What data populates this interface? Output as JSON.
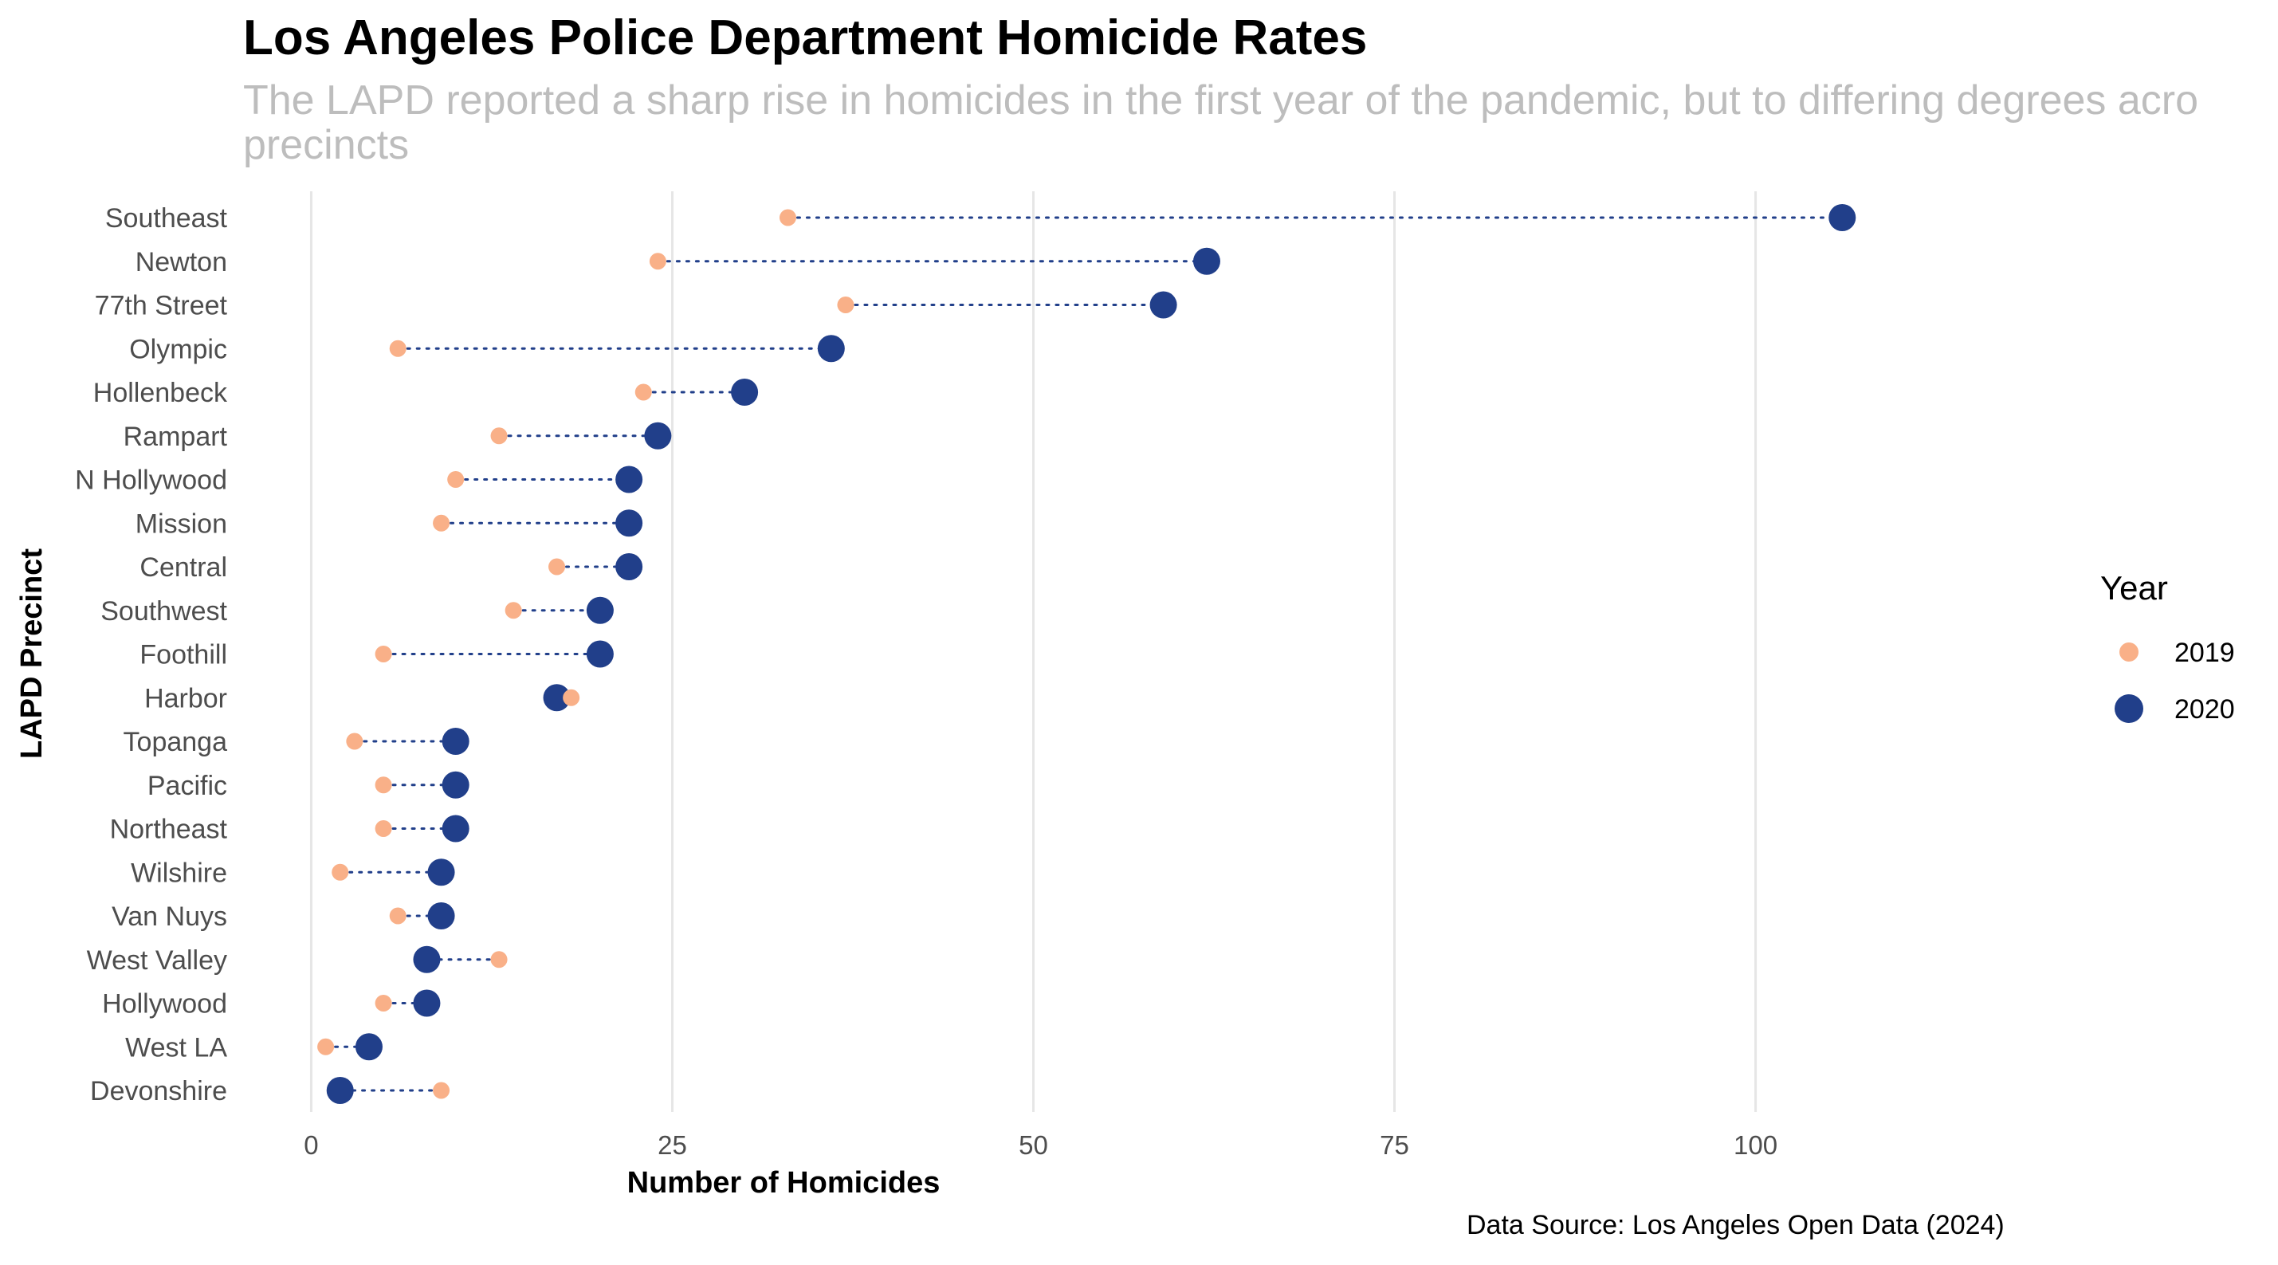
{
  "chart_data": {
    "type": "dumbbell",
    "title": "Los Angeles Police Department Homicide Rates",
    "subtitle_lines": [
      "The LAPD reported a sharp rise in homicides in the first year of the pandemic, but to differing degrees acro",
      "precincts"
    ],
    "xlabel": "Number of Homicides",
    "ylabel": "LAPD Precinct",
    "caption": "Data Source: Los Angeles Open Data (2024)",
    "xlim": [
      -4,
      112
    ],
    "x_ticks": [
      0,
      25,
      50,
      75,
      100
    ],
    "grid": "vertical major",
    "legend": {
      "title": "Year",
      "position": "right"
    },
    "categories": [
      "Southeast",
      "Newton",
      "77th Street",
      "Olympic",
      "Hollenbeck",
      "Rampart",
      "N Hollywood",
      "Mission",
      "Central",
      "Southwest",
      "Foothill",
      "Harbor",
      "Topanga",
      "Pacific",
      "Northeast",
      "Wilshire",
      "Van Nuys",
      "West Valley",
      "Hollywood",
      "West LA",
      "Devonshire"
    ],
    "series": [
      {
        "name": "2019",
        "color": "#F9B088",
        "marker": "small-circle",
        "values": [
          33,
          24,
          37,
          6,
          23,
          13,
          10,
          9,
          17,
          14,
          5,
          18,
          3,
          5,
          5,
          2,
          6,
          13,
          5,
          1,
          9
        ]
      },
      {
        "name": "2020",
        "color": "#213F8A",
        "marker": "large-circle",
        "values": [
          106,
          62,
          59,
          36,
          30,
          24,
          22,
          22,
          22,
          20,
          20,
          17,
          10,
          10,
          10,
          9,
          9,
          8,
          8,
          4,
          2
        ]
      }
    ],
    "connector": {
      "style": "dotted",
      "color": "#213F8A"
    }
  }
}
